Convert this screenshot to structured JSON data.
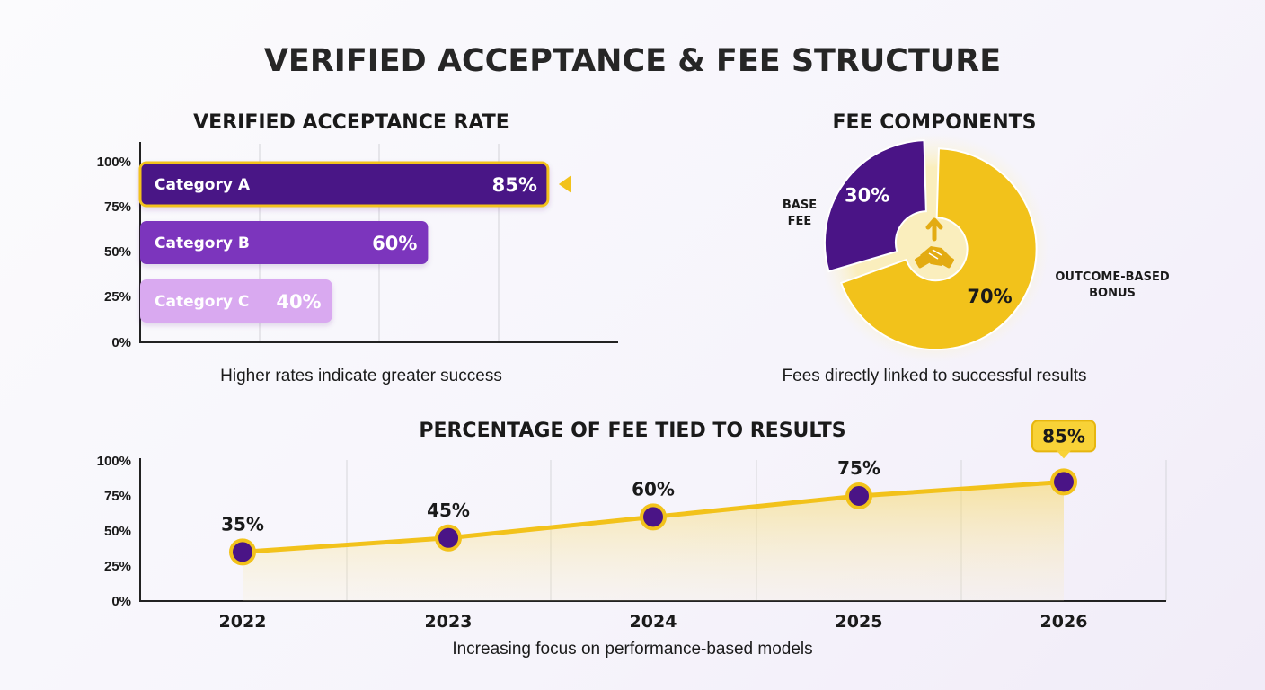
{
  "title": "VERIFIED ACCEPTANCE & FEE STRUCTURE",
  "colors": {
    "purple_dark": "#4a1486",
    "purple_mid": "#7b36bd",
    "purple_light": "#d9a9f0",
    "gold": "#f2c21b",
    "gold_text": "#f3c43a"
  },
  "chart_data": [
    {
      "type": "bar",
      "orientation": "horizontal",
      "title": "VERIFIED ACCEPTANCE RATE",
      "categories": [
        "Category A",
        "Category B",
        "Category C"
      ],
      "values": [
        85,
        60,
        40
      ],
      "value_labels": [
        "85%",
        "60%",
        "40%"
      ],
      "highlight": "Category A",
      "axis_ticks": [
        "0%",
        "25%",
        "50%",
        "75%",
        "100%"
      ],
      "xlim": [
        0,
        100
      ],
      "grid": true,
      "caption": "Higher rates indicate greater success"
    },
    {
      "type": "pie",
      "style": "donut",
      "title": "FEE COMPONENTS",
      "center_icon": "handshake-icon",
      "slices": [
        {
          "name": "BASE FEE",
          "value": 30,
          "label": "30%"
        },
        {
          "name": "OUTCOME-BASED BONUS",
          "value": 70,
          "label": "70%"
        }
      ],
      "caption": "Fees directly linked to successful results"
    },
    {
      "type": "area",
      "title": "PERCENTAGE OF FEE TIED TO RESULTS",
      "x": [
        "2022",
        "2023",
        "2024",
        "2025",
        "2026"
      ],
      "values": [
        35,
        45,
        60,
        75,
        85
      ],
      "value_labels": [
        "35%",
        "45%",
        "60%",
        "75%",
        "85%"
      ],
      "highlight": "2026",
      "axis_ticks": [
        "0%",
        "25%",
        "50%",
        "75%",
        "100%"
      ],
      "ylim": [
        0,
        100
      ],
      "grid": true,
      "caption": "Increasing focus on performance-based models"
    }
  ]
}
